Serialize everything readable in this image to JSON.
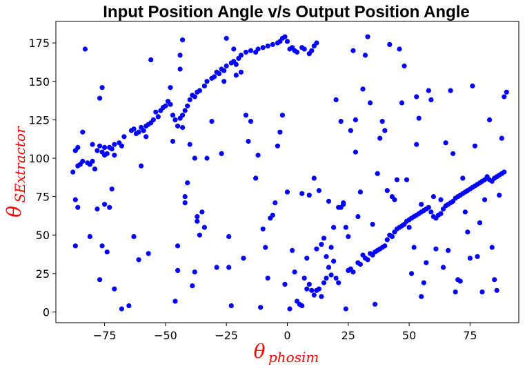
{
  "chart_data": {
    "type": "scatter",
    "title": "Input Position Angle v/s Output Position Angle",
    "xlabel": {
      "symbol": "θ",
      "subscript": "phosim"
    },
    "ylabel": {
      "symbol": "θ",
      "subscript": "SExtractor"
    },
    "xlim": [
      -95,
      95
    ],
    "ylim": [
      -7,
      189
    ],
    "xticks": [
      -75,
      -50,
      -25,
      0,
      25,
      50,
      75
    ],
    "xtick_labels": [
      "−75",
      "−50",
      "−25",
      "0",
      "25",
      "50",
      "75"
    ],
    "yticks": [
      0,
      25,
      50,
      75,
      100,
      125,
      150,
      175
    ],
    "ytick_labels": [
      "0",
      "25",
      "50",
      "75",
      "100",
      "125",
      "150",
      "175"
    ],
    "grid": false,
    "marker_color": "#0000ff",
    "points": [
      [
        -88,
        91
      ],
      [
        -87,
        105
      ],
      [
        -86,
        107
      ],
      [
        -86,
        95
      ],
      [
        -85,
        96
      ],
      [
        -84,
        98
      ],
      [
        -84,
        117
      ],
      [
        -83,
        171
      ],
      [
        -82,
        97
      ],
      [
        -81,
        96
      ],
      [
        -80,
        98
      ],
      [
        -79,
        93
      ],
      [
        -77,
        108
      ],
      [
        -77,
        139
      ],
      [
        -76,
        146
      ],
      [
        -76,
        104
      ],
      [
        -75,
        107
      ],
      [
        -75,
        102
      ],
      [
        -74,
        103
      ],
      [
        -73,
        107
      ],
      [
        -72,
        106
      ],
      [
        -71,
        109
      ],
      [
        -71,
        102
      ],
      [
        -69,
        110
      ],
      [
        -68,
        108
      ],
      [
        -67,
        114
      ],
      [
        -64,
        118
      ],
      [
        -63,
        119
      ],
      [
        -62,
        116
      ],
      [
        -61,
        117
      ],
      [
        -60,
        120
      ],
      [
        -59,
        118
      ],
      [
        -58,
        114
      ],
      [
        -58,
        121
      ],
      [
        -57,
        122
      ],
      [
        -56,
        123
      ],
      [
        -55,
        125
      ],
      [
        -54,
        130
      ],
      [
        -53,
        127
      ],
      [
        -52,
        131
      ],
      [
        -51,
        133
      ],
      [
        -50,
        134
      ],
      [
        -49,
        137
      ],
      [
        -48,
        135
      ],
      [
        -47,
        128
      ],
      [
        -46,
        125
      ],
      [
        -45,
        121
      ],
      [
        -44,
        126
      ],
      [
        -43,
        128
      ],
      [
        -42,
        131
      ],
      [
        -41,
        134
      ],
      [
        -40,
        138
      ],
      [
        -39,
        141
      ],
      [
        -38,
        140
      ],
      [
        -37,
        143
      ],
      [
        -36,
        144
      ],
      [
        -34,
        147
      ],
      [
        -33,
        150
      ],
      [
        -31,
        152
      ],
      [
        -30,
        153
      ],
      [
        -29,
        156
      ],
      [
        -28,
        155
      ],
      [
        -27,
        158
      ],
      [
        -26,
        157
      ],
      [
        -25,
        160
      ],
      [
        -23,
        162
      ],
      [
        -22,
        163
      ],
      [
        -21,
        161
      ],
      [
        -20,
        165
      ],
      [
        -19,
        167
      ],
      [
        -17,
        169
      ],
      [
        -15,
        170
      ],
      [
        -13,
        169
      ],
      [
        -12,
        171
      ],
      [
        -10,
        172
      ],
      [
        -8,
        173
      ],
      [
        -6,
        174
      ],
      [
        -4,
        175
      ],
      [
        -3,
        176
      ],
      [
        -2,
        178
      ],
      [
        -1,
        179
      ],
      [
        0,
        176
      ],
      [
        1,
        171
      ],
      [
        2,
        172
      ],
      [
        3,
        170
      ],
      [
        4,
        169
      ],
      [
        6,
        172
      ],
      [
        7,
        171
      ],
      [
        9,
        168
      ],
      [
        10,
        170
      ],
      [
        11,
        173
      ],
      [
        12,
        175
      ],
      [
        -87,
        73
      ],
      [
        -87,
        43
      ],
      [
        -86,
        68
      ],
      [
        -81,
        49
      ],
      [
        -80,
        109
      ],
      [
        -78,
        105
      ],
      [
        -78,
        67
      ],
      [
        -77,
        21
      ],
      [
        -76,
        43
      ],
      [
        -75,
        70
      ],
      [
        -74,
        39
      ],
      [
        -73,
        68
      ],
      [
        -72,
        80
      ],
      [
        -71,
        15
      ],
      [
        -68,
        2
      ],
      [
        -65,
        4
      ],
      [
        -63,
        49
      ],
      [
        -61,
        34
      ],
      [
        -60,
        95
      ],
      [
        -57,
        38
      ],
      [
        -56,
        164
      ],
      [
        -48,
        146
      ],
      [
        -47,
        111
      ],
      [
        -46,
        7
      ],
      [
        -45,
        43
      ],
      [
        -45,
        27
      ],
      [
        -44,
        167
      ],
      [
        -44,
        158
      ],
      [
        -43,
        177
      ],
      [
        -43,
        120
      ],
      [
        -42,
        75
      ],
      [
        -42,
        71
      ],
      [
        -41,
        84
      ],
      [
        -40,
        109
      ],
      [
        -39,
        17
      ],
      [
        -38,
        26
      ],
      [
        -38,
        100
      ],
      [
        -37,
        62
      ],
      [
        -37,
        59
      ],
      [
        -36,
        50
      ],
      [
        -35,
        65
      ],
      [
        -34,
        55
      ],
      [
        -33,
        100
      ],
      [
        -31,
        124
      ],
      [
        -29,
        29
      ],
      [
        -27,
        103
      ],
      [
        -26,
        150
      ],
      [
        -25,
        178
      ],
      [
        -24,
        29
      ],
      [
        -24,
        49
      ],
      [
        -23,
        4
      ],
      [
        -22,
        171
      ],
      [
        -21,
        154
      ],
      [
        -19,
        156
      ],
      [
        -18,
        35
      ],
      [
        -17,
        128
      ],
      [
        -16,
        111
      ],
      [
        -15,
        124
      ],
      [
        -13,
        87
      ],
      [
        -12,
        102
      ],
      [
        -11,
        3
      ],
      [
        -10,
        54
      ],
      [
        -9,
        42
      ],
      [
        -8,
        22
      ],
      [
        -7,
        61
      ],
      [
        -6,
        63
      ],
      [
        -5,
        71
      ],
      [
        -4,
        108
      ],
      [
        -3,
        117
      ],
      [
        -2,
        128
      ],
      [
        -1,
        18
      ],
      [
        0,
        78
      ],
      [
        1,
        2
      ],
      [
        2,
        40
      ],
      [
        3,
        26
      ],
      [
        4,
        7
      ],
      [
        5,
        5
      ],
      [
        6,
        4
      ],
      [
        7,
        22
      ],
      [
        8,
        15
      ],
      [
        9,
        18
      ],
      [
        10,
        14
      ],
      [
        11,
        11
      ],
      [
        12,
        14
      ],
      [
        13,
        15
      ],
      [
        14,
        10
      ],
      [
        15,
        19
      ],
      [
        16,
        22
      ],
      [
        17,
        29
      ],
      [
        18,
        24
      ],
      [
        19,
        33
      ],
      [
        20,
        22
      ],
      [
        21,
        19
      ],
      [
        22,
        68
      ],
      [
        23,
        70
      ],
      [
        24,
        2
      ],
      [
        25,
        27
      ],
      [
        26,
        28
      ],
      [
        27,
        26
      ],
      [
        28,
        104
      ],
      [
        29,
        32
      ],
      [
        30,
        31
      ],
      [
        31,
        37
      ],
      [
        32,
        35
      ],
      [
        33,
        34
      ],
      [
        34,
        38
      ],
      [
        35,
        37
      ],
      [
        36,
        39
      ],
      [
        37,
        40
      ],
      [
        38,
        41
      ],
      [
        39,
        42
      ],
      [
        40,
        43
      ],
      [
        41,
        47
      ],
      [
        42,
        50
      ],
      [
        43,
        49
      ],
      [
        44,
        52
      ],
      [
        45,
        54
      ],
      [
        46,
        55
      ],
      [
        47,
        56
      ],
      [
        48,
        57
      ],
      [
        49,
        59
      ],
      [
        50,
        60
      ],
      [
        51,
        61
      ],
      [
        52,
        62
      ],
      [
        53,
        63
      ],
      [
        54,
        64
      ],
      [
        55,
        65
      ],
      [
        56,
        66
      ],
      [
        57,
        67
      ],
      [
        58,
        68
      ],
      [
        59,
        65
      ],
      [
        60,
        62
      ],
      [
        61,
        61
      ],
      [
        62,
        63
      ],
      [
        63,
        64
      ],
      [
        64,
        67
      ],
      [
        65,
        69
      ],
      [
        66,
        70
      ],
      [
        67,
        71
      ],
      [
        68,
        72
      ],
      [
        69,
        74
      ],
      [
        70,
        75
      ],
      [
        71,
        76
      ],
      [
        72,
        77
      ],
      [
        73,
        78
      ],
      [
        74,
        79
      ],
      [
        75,
        80
      ],
      [
        76,
        81
      ],
      [
        77,
        82
      ],
      [
        78,
        83
      ],
      [
        79,
        84
      ],
      [
        80,
        85
      ],
      [
        81,
        86
      ],
      [
        82,
        87
      ],
      [
        83,
        86
      ],
      [
        84,
        85
      ],
      [
        85,
        87
      ],
      [
        86,
        88
      ],
      [
        87,
        89
      ],
      [
        88,
        90
      ],
      [
        89,
        91
      ],
      [
        6,
        77
      ],
      [
        8,
        35
      ],
      [
        9,
        76
      ],
      [
        11,
        87
      ],
      [
        12,
        41
      ],
      [
        13,
        79
      ],
      [
        14,
        44
      ],
      [
        15,
        48
      ],
      [
        16,
        36
      ],
      [
        17,
        72
      ],
      [
        18,
        42
      ],
      [
        19,
        55
      ],
      [
        20,
        138
      ],
      [
        21,
        68
      ],
      [
        22,
        124
      ],
      [
        23,
        71
      ],
      [
        24,
        55
      ],
      [
        25,
        49
      ],
      [
        26,
        118
      ],
      [
        27,
        170
      ],
      [
        28,
        125
      ],
      [
        29,
        62
      ],
      [
        30,
        78
      ],
      [
        31,
        145
      ],
      [
        32,
        167
      ],
      [
        33,
        179
      ],
      [
        34,
        136
      ],
      [
        35,
        57
      ],
      [
        36,
        5
      ],
      [
        37,
        90
      ],
      [
        38,
        113
      ],
      [
        39,
        124
      ],
      [
        40,
        118
      ],
      [
        41,
        79
      ],
      [
        42,
        174
      ],
      [
        43,
        75
      ],
      [
        44,
        73
      ],
      [
        45,
        86
      ],
      [
        46,
        171
      ],
      [
        47,
        136
      ],
      [
        48,
        160
      ],
      [
        49,
        86
      ],
      [
        50,
        55
      ],
      [
        51,
        25
      ],
      [
        52,
        42
      ],
      [
        53,
        140
      ],
      [
        54,
        126
      ],
      [
        55,
        70
      ],
      [
        56,
        19
      ],
      [
        57,
        32
      ],
      [
        58,
        144
      ],
      [
        59,
        138
      ],
      [
        60,
        75
      ],
      [
        61,
        41
      ],
      [
        62,
        63
      ],
      [
        63,
        73
      ],
      [
        64,
        29
      ],
      [
        65,
        110
      ],
      [
        66,
        40
      ],
      [
        67,
        144
      ],
      [
        68,
        103
      ],
      [
        69,
        13
      ],
      [
        70,
        21
      ],
      [
        71,
        20
      ],
      [
        72,
        87
      ],
      [
        73,
        65
      ],
      [
        74,
        52
      ],
      [
        75,
        35
      ],
      [
        76,
        147
      ],
      [
        77,
        108
      ],
      [
        78,
        36
      ],
      [
        79,
        58
      ],
      [
        80,
        13
      ],
      [
        81,
        73
      ],
      [
        82,
        88
      ],
      [
        83,
        125
      ],
      [
        84,
        42
      ],
      [
        85,
        21
      ],
      [
        86,
        14
      ],
      [
        87,
        76
      ],
      [
        88,
        113
      ],
      [
        89,
        140
      ],
      [
        90,
        143
      ],
      [
        53,
        109
      ],
      [
        55,
        10
      ]
    ]
  }
}
